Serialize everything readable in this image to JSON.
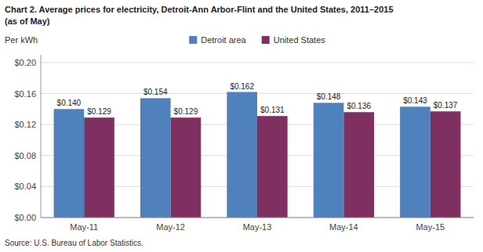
{
  "chart_data": {
    "type": "bar",
    "title": "Chart 2. Average prices for electricity, Detroit-Ann Arbor-Flint and the United States, 2011–2015",
    "subtitle": "(as of May)",
    "ylabel": "Per kWh",
    "annotations": [
      "Source: U.S. Bureau of Labor Statistics."
    ],
    "categories": [
      "May-11",
      "May-12",
      "May-13",
      "May-14",
      "May-15"
    ],
    "series": [
      {
        "name": "Detroit area",
        "color": "#4F81BD",
        "values": [
          0.14,
          0.154,
          0.162,
          0.148,
          0.143
        ],
        "value_labels": [
          "$0.140",
          "$0.154",
          "$0.162",
          "$0.148",
          "$0.143"
        ]
      },
      {
        "name": "United States",
        "color": "#7F3060",
        "values": [
          0.129,
          0.129,
          0.131,
          0.136,
          0.137
        ],
        "value_labels": [
          "$0.129",
          "$0.129",
          "$0.131",
          "$0.136",
          "$0.137"
        ]
      }
    ],
    "ylim": [
      0,
      0.21
    ],
    "yticks": [
      {
        "value": 0.0,
        "label": "$0.00"
      },
      {
        "value": 0.04,
        "label": "$0.04"
      },
      {
        "value": 0.08,
        "label": "$0.08"
      },
      {
        "value": 0.12,
        "label": "$0.12"
      },
      {
        "value": 0.16,
        "label": "$0.16"
      },
      {
        "value": 0.2,
        "label": "$0.20"
      }
    ],
    "grid": true,
    "legend": "top",
    "data_labels": true
  }
}
